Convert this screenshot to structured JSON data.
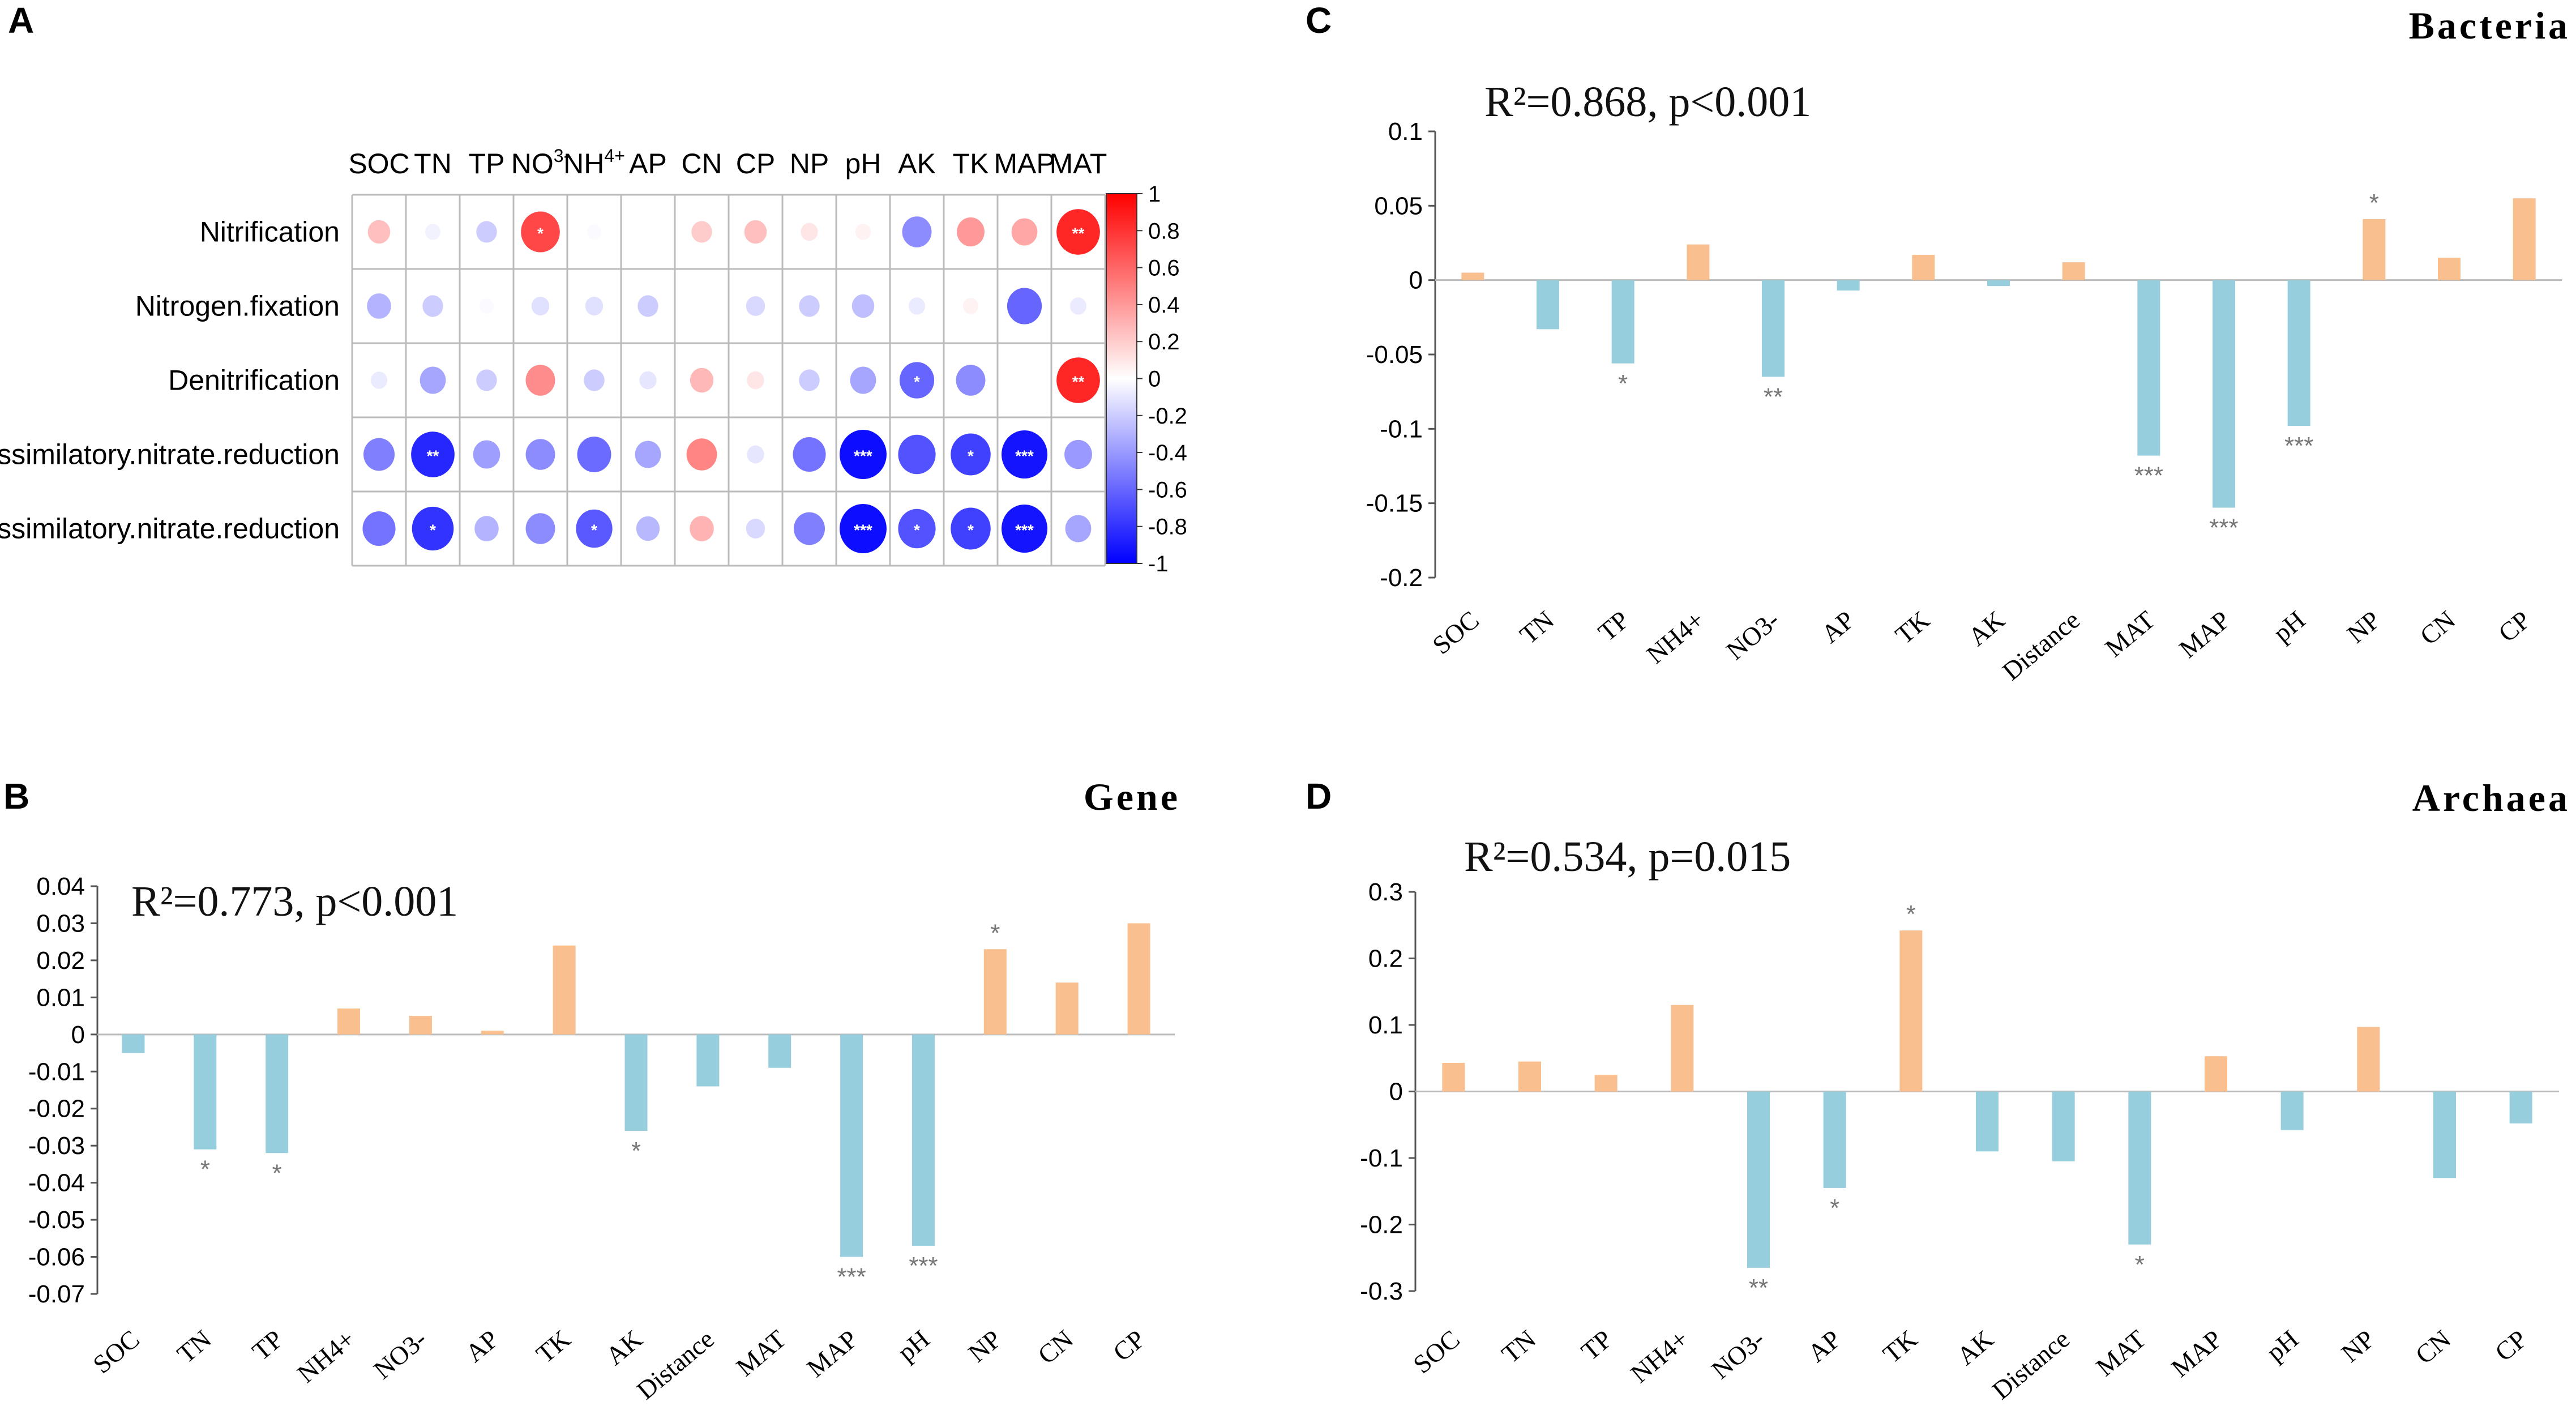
{
  "colors": {
    "positive_bar": "#F9BF8E",
    "negative_bar": "#96CEDD",
    "axis": "#555555",
    "zero_line": "#bbbbbb",
    "heat_neg": "#0000FF",
    "heat_pos": "#FF0000",
    "heat_mid": "#FFFFFF",
    "grid": "#bbbbbb"
  },
  "chart_data": [
    {
      "panel": "A",
      "type": "heatmap",
      "columns": [
        "SOC",
        "TN",
        "TP",
        "NO3-",
        "NH4+",
        "AP",
        "CN",
        "CP",
        "NP",
        "pH",
        "AK",
        "TK",
        "MAP",
        "MAT"
      ],
      "rows": [
        "Nitrification",
        "Nitrogen.fixation",
        "Denitrification",
        "Assimilatory.nitrate.reduction",
        "Dissimilatory.nitrate.reduction"
      ],
      "values": [
        [
          0.25,
          -0.05,
          -0.2,
          0.72,
          -0.02,
          0.0,
          0.2,
          0.25,
          0.1,
          0.05,
          -0.45,
          0.4,
          0.35,
          0.85
        ],
        [
          -0.3,
          -0.2,
          -0.02,
          -0.12,
          -0.12,
          -0.2,
          0.0,
          -0.15,
          -0.2,
          -0.25,
          -0.08,
          0.05,
          -0.6,
          -0.08
        ],
        [
          -0.08,
          -0.35,
          -0.2,
          0.45,
          -0.2,
          -0.1,
          0.28,
          0.1,
          -0.2,
          -0.35,
          -0.6,
          -0.45,
          0.0,
          0.85
        ],
        [
          -0.5,
          -0.85,
          -0.38,
          -0.45,
          -0.58,
          -0.35,
          0.48,
          -0.1,
          -0.55,
          -0.95,
          -0.68,
          -0.75,
          -0.92,
          -0.4
        ],
        [
          -0.55,
          -0.8,
          -0.3,
          -0.45,
          -0.65,
          -0.28,
          0.3,
          -0.15,
          -0.5,
          -0.95,
          -0.68,
          -0.75,
          -0.92,
          -0.35
        ]
      ],
      "significance": [
        [
          "",
          "",
          "",
          "*",
          "",
          "",
          "",
          "",
          "",
          "",
          "",
          "",
          "",
          "**"
        ],
        [
          "",
          "",
          "",
          "",
          "",
          "",
          "",
          "",
          "",
          "",
          "",
          "",
          "",
          ""
        ],
        [
          "",
          "",
          "",
          "",
          "",
          "",
          "",
          "",
          "",
          "",
          "*",
          "",
          "",
          "**"
        ],
        [
          "",
          "**",
          "",
          "",
          "",
          "",
          "",
          "",
          "",
          "***",
          "",
          "*",
          "***",
          ""
        ],
        [
          "",
          "*",
          "",
          "",
          "*",
          "",
          "",
          "",
          "",
          "***",
          "*",
          "*",
          "***",
          ""
        ]
      ],
      "colorbar_ticks": [
        "1",
        "0.8",
        "0.6",
        "0.4",
        "0.2",
        "0",
        "-0.2",
        "-0.4",
        "-0.6",
        "-0.8",
        "-1"
      ],
      "range": [
        -1,
        1
      ]
    },
    {
      "panel": "B",
      "type": "bar",
      "title": "Gene",
      "annotation": "R²=0.773, p<0.001",
      "categories": [
        "SOC",
        "TN",
        "TP",
        "NH4+",
        "NO3-",
        "AP",
        "TK",
        "AK",
        "Distance",
        "MAT",
        "MAP",
        "pH",
        "NP",
        "CN",
        "CP"
      ],
      "values": [
        -0.005,
        -0.031,
        -0.032,
        0.007,
        0.005,
        0.001,
        0.024,
        -0.026,
        -0.014,
        -0.009,
        -0.06,
        -0.057,
        0.023,
        0.014,
        0.03
      ],
      "significance": [
        "",
        "*",
        "*",
        "",
        "",
        "",
        "",
        "*",
        "",
        "",
        "***",
        "***",
        "*",
        "",
        ""
      ],
      "ylim": [
        -0.07,
        0.04
      ],
      "yticks": [
        0.04,
        0.03,
        0.02,
        0.01,
        0,
        -0.01,
        -0.02,
        -0.03,
        -0.04,
        -0.05,
        -0.06,
        -0.07
      ],
      "ytick_labels": [
        "0.04",
        "0.03",
        "0.02",
        "0.01",
        "0",
        "-0.01",
        "-0.02",
        "-0.03",
        "-0.04",
        "-0.05",
        "-0.06",
        "-0.07"
      ]
    },
    {
      "panel": "C",
      "type": "bar",
      "title": "Bacteria",
      "annotation": "R²=0.868, p<0.001",
      "categories": [
        "SOC",
        "TN",
        "TP",
        "NH4+",
        "NO3-",
        "AP",
        "TK",
        "AK",
        "Distance",
        "MAT",
        "MAP",
        "pH",
        "NP",
        "CN",
        "CP"
      ],
      "values": [
        0.005,
        -0.033,
        -0.056,
        0.024,
        -0.065,
        -0.007,
        0.017,
        -0.004,
        0.012,
        -0.118,
        -0.153,
        -0.098,
        0.041,
        0.015,
        0.055
      ],
      "significance": [
        "",
        "",
        "*",
        "",
        "**",
        "",
        "",
        "",
        "",
        "***",
        "***",
        "***",
        "*",
        "",
        ""
      ],
      "ylim": [
        -0.2,
        0.1
      ],
      "yticks": [
        0.1,
        0.05,
        0,
        -0.05,
        -0.1,
        -0.15,
        -0.2
      ],
      "ytick_labels": [
        "0.1",
        "0.05",
        "0",
        "-0.05",
        "-0.1",
        "-0.15",
        "-0.2"
      ]
    },
    {
      "panel": "D",
      "type": "bar",
      "title": "Archaea",
      "annotation": "R²=0.534, p=0.015",
      "categories": [
        "SOC",
        "TN",
        "TP",
        "NH4+",
        "NO3-",
        "AP",
        "TK",
        "AK",
        "Distance",
        "MAT",
        "MAP",
        "pH",
        "NP",
        "CN",
        "CP"
      ],
      "values": [
        0.043,
        0.045,
        0.025,
        0.13,
        -0.265,
        -0.145,
        0.242,
        -0.09,
        -0.105,
        -0.23,
        0.053,
        -0.058,
        0.097,
        -0.13,
        -0.048
      ],
      "significance": [
        "",
        "",
        "",
        "",
        "**",
        "*",
        "*",
        "",
        "",
        "*",
        "",
        "",
        "",
        "",
        ""
      ],
      "ylim": [
        -0.3,
        0.3
      ],
      "yticks": [
        0.3,
        0.2,
        0.1,
        0,
        -0.1,
        -0.2,
        -0.3
      ],
      "ytick_labels": [
        "0.3",
        "0.2",
        "0.1",
        "0",
        "-0.1",
        "-0.2",
        "-0.3"
      ]
    }
  ]
}
